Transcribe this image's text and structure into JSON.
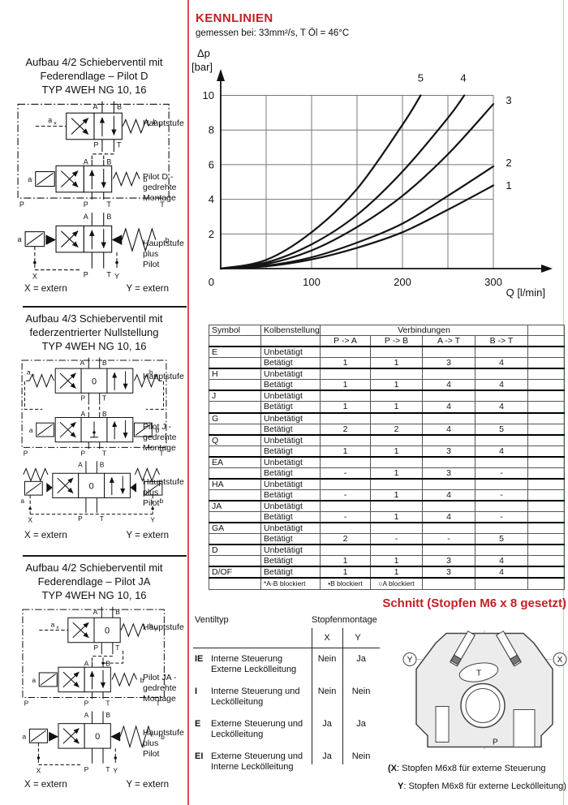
{
  "kennlinien": {
    "title": "KENNLINIEN",
    "subtitle": "gemessen bei: 33mm²/s, T Öl = 46°C"
  },
  "chart_data": {
    "type": "line",
    "title": "KENNLINIEN",
    "subtitle": "gemessen bei: 33mm²/s, T Öl = 46°C",
    "ylabel_line1": "Δp",
    "ylabel_line2": "[bar]",
    "xlabel": "Q [l/min]",
    "origin_label": "0",
    "xlim": [
      0,
      300
    ],
    "ylim": [
      0,
      10
    ],
    "xticks": [
      100,
      200,
      300
    ],
    "yticks": [
      2,
      4,
      6,
      8,
      10
    ],
    "grid": true,
    "grid_x_step": 50,
    "series": [
      {
        "name": "1",
        "points": [
          [
            0,
            0
          ],
          [
            50,
            0.13
          ],
          [
            100,
            0.53
          ],
          [
            150,
            1.2
          ],
          [
            200,
            2.1
          ],
          [
            250,
            3.4
          ],
          [
            300,
            4.8
          ]
        ]
      },
      {
        "name": "2",
        "points": [
          [
            0,
            0
          ],
          [
            50,
            0.17
          ],
          [
            100,
            0.65
          ],
          [
            150,
            1.5
          ],
          [
            200,
            2.6
          ],
          [
            250,
            4.2
          ],
          [
            300,
            5.9
          ]
        ]
      },
      {
        "name": "3",
        "points": [
          [
            0,
            0
          ],
          [
            50,
            0.26
          ],
          [
            100,
            1.05
          ],
          [
            150,
            2.4
          ],
          [
            200,
            4.2
          ],
          [
            250,
            6.6
          ],
          [
            300,
            9.5
          ]
        ]
      },
      {
        "name": "4",
        "points": [
          [
            0,
            0
          ],
          [
            50,
            0.35
          ],
          [
            100,
            1.4
          ],
          [
            150,
            3.1
          ],
          [
            200,
            5.6
          ],
          [
            250,
            8.7
          ],
          [
            268,
            10
          ]
        ]
      },
      {
        "name": "5",
        "points": [
          [
            0,
            0
          ],
          [
            50,
            0.5
          ],
          [
            100,
            2.1
          ],
          [
            150,
            4.6
          ],
          [
            200,
            8.3
          ],
          [
            220,
            10
          ]
        ]
      }
    ],
    "curve_labels": [
      {
        "text": "5",
        "q": 220,
        "p": 10.8
      },
      {
        "text": "4",
        "q": 267,
        "p": 10.8
      },
      {
        "text": "3",
        "q": 317,
        "p": 9.5
      },
      {
        "text": "2",
        "q": 317,
        "p": 5.9
      },
      {
        "text": "1",
        "q": 317,
        "p": 4.6
      }
    ]
  },
  "left_sections": [
    {
      "title": "Aufbau 4/2 Schieberventil mit\nFederendlage – Pilot D\nTYP 4WEH NG 10, 16",
      "stage1": "Hauptstufe",
      "stage2": "Pilot D -\ngedrehte\nMontage",
      "stage3": "Hauptstufe\nplus\nPilot",
      "extern_x": "X = extern",
      "extern_y": "Y = extern"
    },
    {
      "title": "Aufbau 4/3 Schieberventil mit\nfederzentrierter Nullstellung\nTYP 4WEH NG 10, 16",
      "stage1": "Hauptstufe",
      "stage2": "Pilot J -\ngedrehte\nMontage",
      "stage3": "Hauptstufe\nplus\nPilot",
      "extern_x": "X = extern",
      "extern_y": "Y = extern"
    },
    {
      "title": "Aufbau 4/2 Schieberventil mit\nFederendlage – Pilot JA\nTYP 4WEH NG 10, 16",
      "stage1": "Hauptstufe",
      "stage2": "Pilot JA -\ngedrehte\nMontage",
      "stage3": "Hauptstufe\nplus\nPilot",
      "extern_x": "X = extern",
      "extern_y": "Y = extern"
    }
  ],
  "diagram_labels": {
    "A": "A",
    "B": "B",
    "P": "P",
    "T": "T",
    "X": "X",
    "Y": "Y",
    "a": "a",
    "b": "b",
    "x": "x",
    "y": "y",
    "zero": "0"
  },
  "connections_table": {
    "header": {
      "symbol": "Symbol",
      "kolbenstellung": "Kolbenstellung",
      "verbindungen": "Verbindungen",
      "cols": [
        "P -> A",
        "P -> B",
        "A -> T",
        "B -> T"
      ]
    },
    "groups": [
      {
        "symbol": "E",
        "rows": [
          {
            "state": "Unbetätigt",
            "vals": [
              "",
              "",
              "",
              ""
            ]
          },
          {
            "state": "Betätigt",
            "vals": [
              "1",
              "1",
              "3",
              "4"
            ]
          }
        ]
      },
      {
        "symbol": "H",
        "rows": [
          {
            "state": "Unbetätigt",
            "vals": [
              "",
              "",
              "",
              ""
            ]
          },
          {
            "state": "Betätigt",
            "vals": [
              "1",
              "1",
              "4",
              "4"
            ]
          }
        ]
      },
      {
        "symbol": "J",
        "rows": [
          {
            "state": "Unbetätigt",
            "vals": [
              "",
              "",
              "",
              ""
            ]
          },
          {
            "state": "Betätigt",
            "vals": [
              "1",
              "1",
              "4",
              "4"
            ]
          }
        ]
      },
      {
        "symbol": "G",
        "rows": [
          {
            "state": "Unbetätigt",
            "vals": [
              "",
              "",
              "",
              ""
            ]
          },
          {
            "state": "Betätigt",
            "vals": [
              "2",
              "2",
              "4",
              "5"
            ]
          }
        ]
      },
      {
        "symbol": "Q",
        "rows": [
          {
            "state": "Unbetätigt",
            "vals": [
              "",
              "",
              "",
              ""
            ]
          },
          {
            "state": "Betätigt",
            "vals": [
              "1",
              "1",
              "3",
              "4"
            ]
          }
        ]
      },
      {
        "symbol": "EA",
        "rows": [
          {
            "state": "Unbetätigt",
            "vals": [
              "",
              "",
              "",
              ""
            ]
          },
          {
            "state": "Betätigt",
            "vals": [
              "-",
              "1",
              "3",
              "-"
            ]
          }
        ]
      },
      {
        "symbol": "HA",
        "rows": [
          {
            "state": "Unbetätigt",
            "vals": [
              "",
              "",
              "",
              ""
            ]
          },
          {
            "state": "Betätigt",
            "vals": [
              "-",
              "1",
              "4",
              "-"
            ]
          }
        ]
      },
      {
        "symbol": "JA",
        "rows": [
          {
            "state": "Unbetätigt",
            "vals": [
              "",
              "",
              "",
              ""
            ]
          },
          {
            "state": "Betätigt",
            "vals": [
              "-",
              "1",
              "4",
              "-"
            ]
          }
        ]
      },
      {
        "symbol": "GA",
        "rows": [
          {
            "state": "Unbetätigt",
            "vals": [
              "",
              "",
              "",
              ""
            ]
          },
          {
            "state": "Betätigt",
            "vals": [
              "2",
              "-",
              "-",
              "5"
            ]
          }
        ]
      },
      {
        "symbol": "D",
        "rows": [
          {
            "state": "Unbetätigt",
            "vals": [
              "",
              "",
              "",
              ""
            ]
          },
          {
            "state": "Betätigt",
            "vals": [
              "1",
              "1",
              "3",
              "4"
            ]
          }
        ]
      },
      {
        "symbol": "D/OF",
        "rows": [
          {
            "state": "Betätigt",
            "vals": [
              "1",
              "1",
              "3",
              "4"
            ]
          }
        ]
      }
    ],
    "footnotes": [
      "*A-B blockiert",
      "•B blockiert",
      "○A blockiert"
    ]
  },
  "schnitt": {
    "heading": "Schnitt (Stopfen M6 x 8 gesetzt)",
    "table": {
      "col1": "Ventiltyp",
      "col2": "Stopfenmontage",
      "sub_x": "X",
      "sub_y": "Y",
      "rows": [
        {
          "code": "IE",
          "desc": "Interne Steuerung\nExterne Leckölleitung",
          "x": "Nein",
          "y": "Ja"
        },
        {
          "code": "I",
          "desc": "Interne Steuerung und\nLeckölleitung",
          "x": "Nein",
          "y": "Nein"
        },
        {
          "code": "E",
          "desc": "Externe Steuerung und\nLeckölleitung",
          "x": "Ja",
          "y": "Ja"
        },
        {
          "code": "EI",
          "desc": "Externe Steuerung und\nInterne Leckölleitung",
          "x": "Ja",
          "y": "Nein"
        }
      ]
    },
    "notes": [
      {
        "k": "(X",
        "t": ": Stopfen M6x8 für externe Steuerung"
      },
      {
        "k": "Y",
        "t": ": Stopfen M6x8 für externe Leckölleitung)"
      }
    ]
  }
}
